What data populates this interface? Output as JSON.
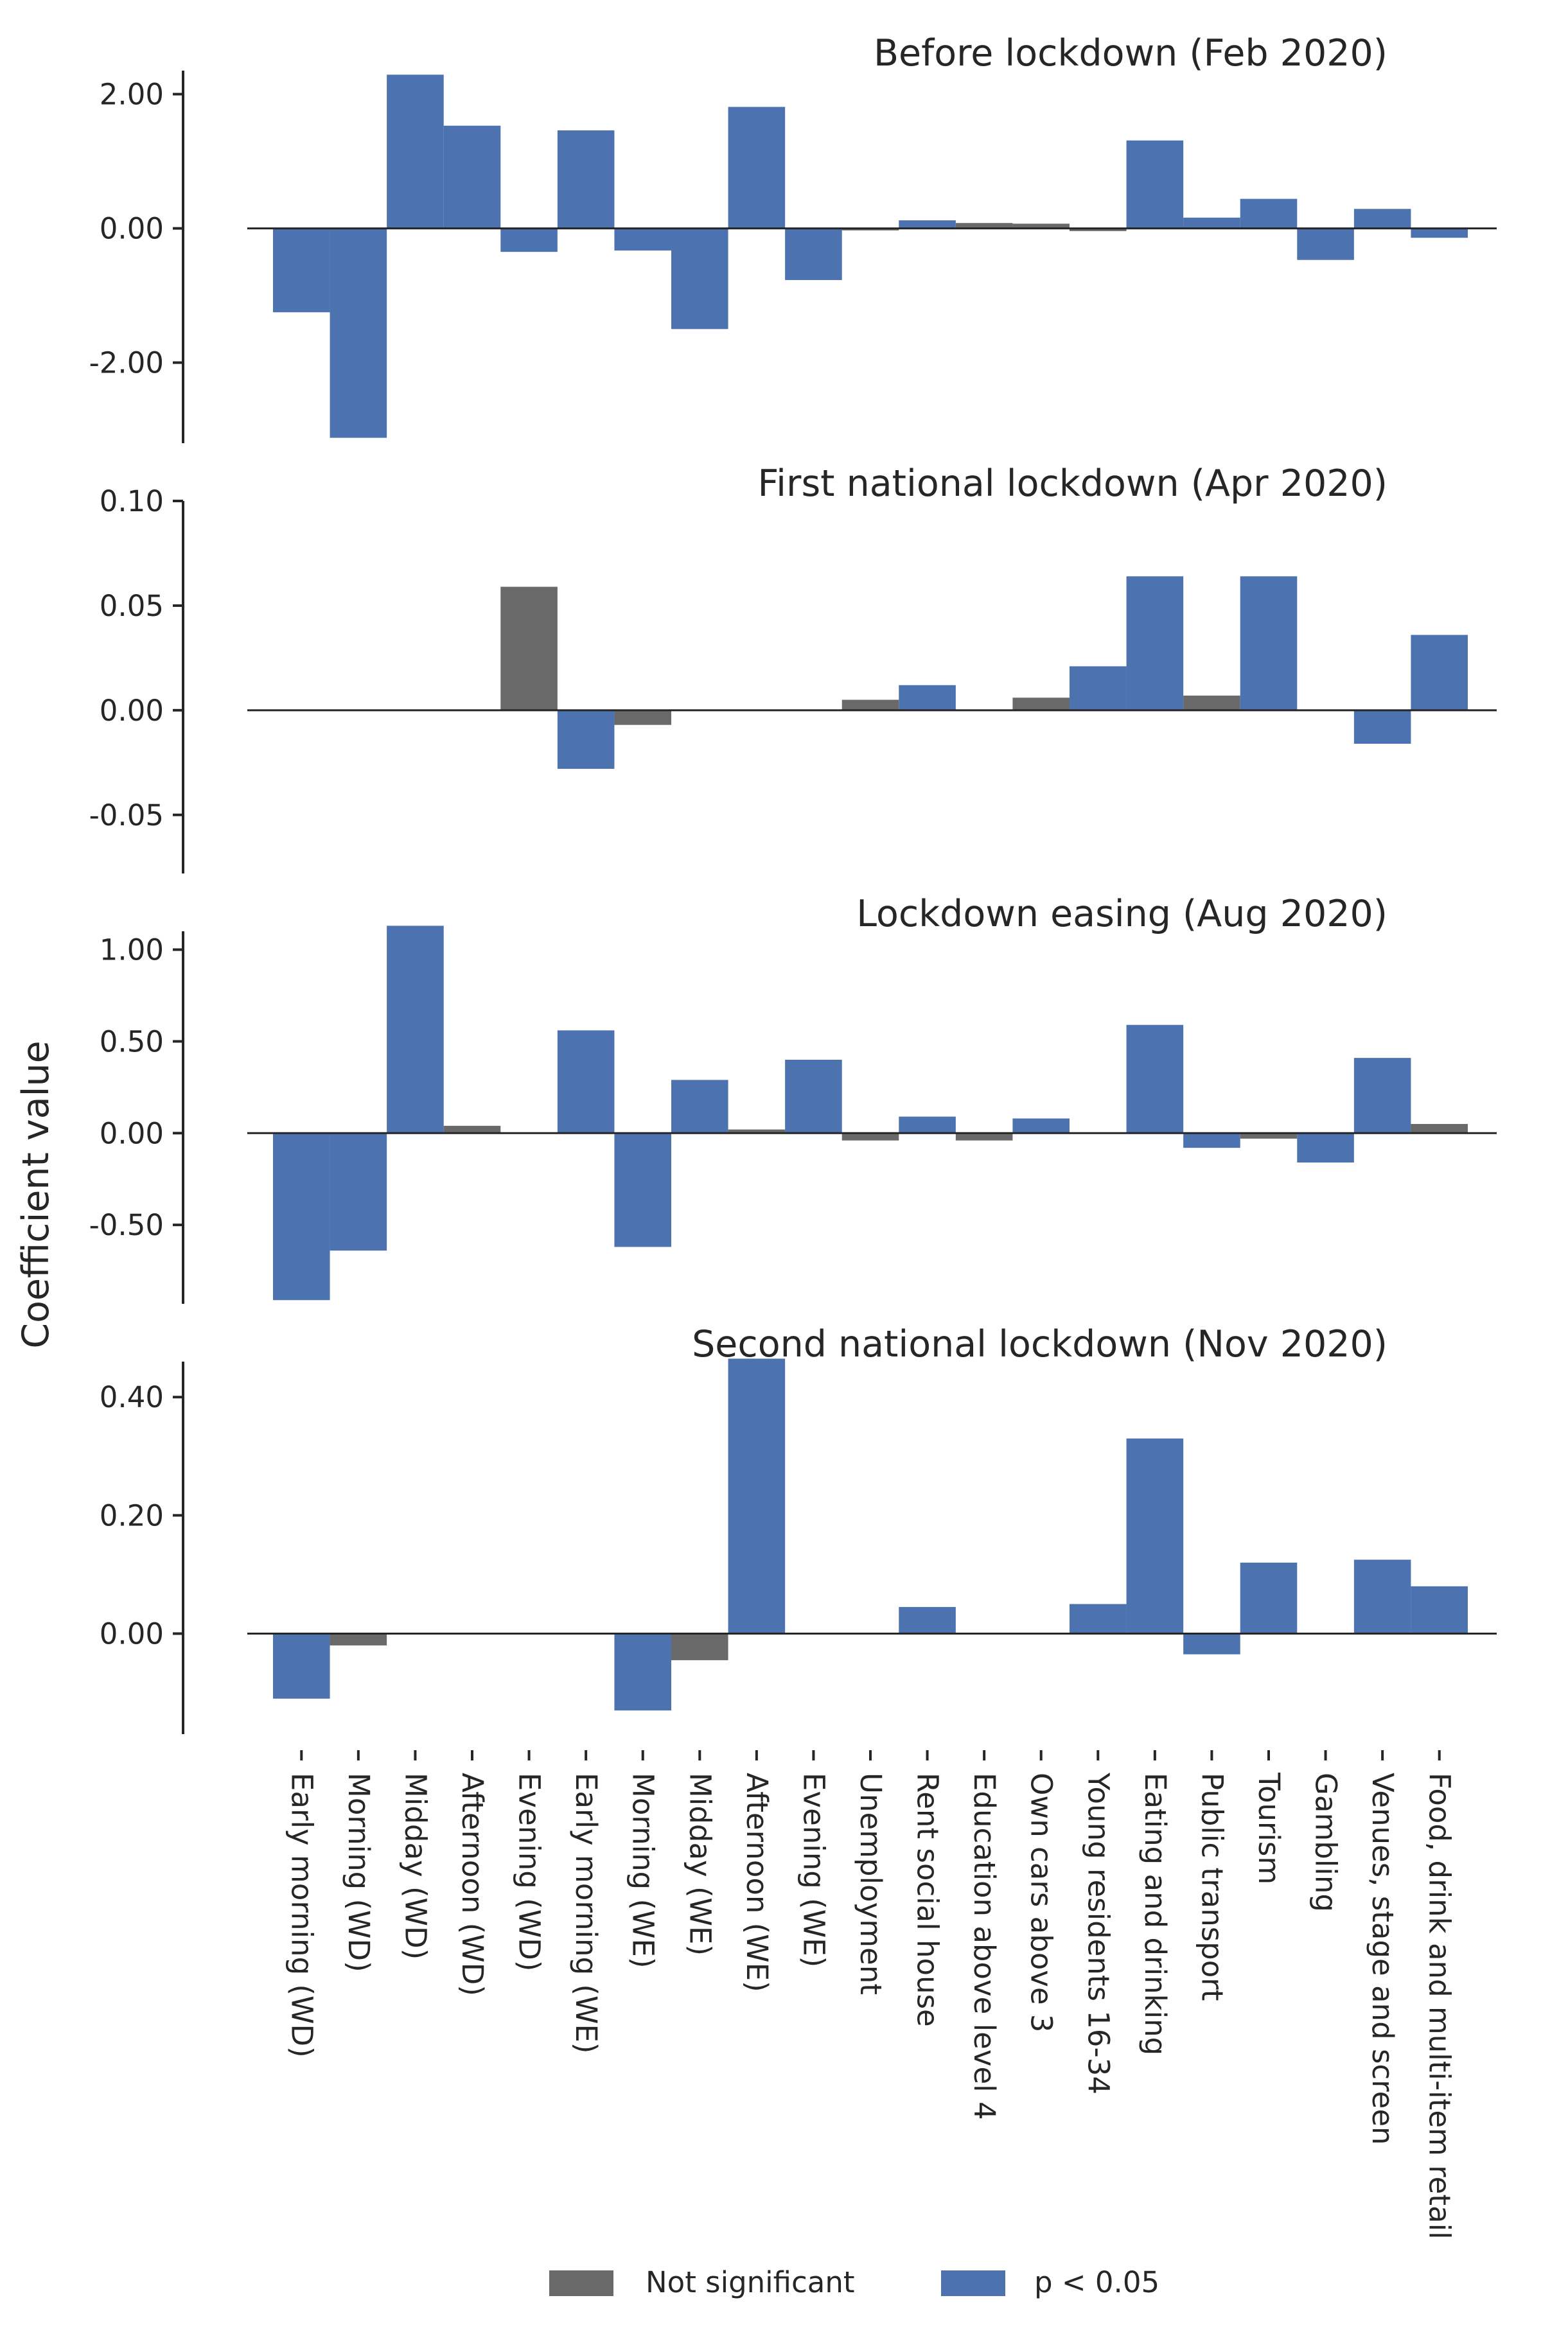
{
  "ylabel": "Coefficient value",
  "categories": [
    "Early morning (WD)",
    "Morning (WD)",
    "Midday (WD)",
    "Afternoon (WD)",
    "Evening (WD)",
    "Early morning (WE)",
    "Morning (WE)",
    "Midday (WE)",
    "Afternoon (WE)",
    "Evening (WE)",
    "Unemployment",
    "Rent social house",
    "Education above level 4",
    "Own cars above 3",
    "Young residents 16-34",
    "Eating and drinking",
    "Public transport",
    "Tourism",
    "Gambling",
    "Venues, stage and screen",
    "Food, drink and multi-item retail"
  ],
  "legend": {
    "position": "bottom-center",
    "items": [
      {
        "label": "Not significant",
        "color": "#696969"
      },
      {
        "label": "p < 0.05",
        "color": "#4c72b0"
      }
    ]
  },
  "colors": {
    "not_significant": "#696969",
    "significant": "#4c72b0"
  },
  "chart_data": [
    {
      "type": "bar",
      "title": "Before lockdown (Feb 2020)",
      "ylim": [
        -3.2,
        2.35
      ],
      "yticks": [
        -2.0,
        0.0,
        2.0
      ],
      "tick_format": 2,
      "values": [
        -1.25,
        -3.12,
        2.29,
        1.53,
        -0.35,
        1.46,
        -0.33,
        -1.5,
        1.81,
        -0.77,
        -0.03,
        0.12,
        0.08,
        0.07,
        -0.04,
        1.31,
        0.16,
        0.44,
        -0.47,
        0.29,
        -0.14
      ],
      "significant": [
        true,
        true,
        true,
        true,
        true,
        true,
        true,
        true,
        true,
        true,
        false,
        true,
        false,
        false,
        false,
        true,
        true,
        true,
        true,
        true,
        true
      ]
    },
    {
      "type": "bar",
      "title": "First national lockdown (Apr 2020)",
      "ylim": [
        -0.078,
        0.1
      ],
      "yticks": [
        -0.05,
        0.0,
        0.05,
        0.1
      ],
      "tick_format": 2,
      "values": [
        0,
        0,
        0,
        0,
        0.059,
        -0.028,
        -0.007,
        0,
        0,
        0,
        0.005,
        0.012,
        0,
        0.006,
        0.021,
        0.064,
        0.007,
        0.064,
        0,
        -0.016,
        0.036
      ],
      "significant": [
        false,
        false,
        false,
        false,
        false,
        true,
        false,
        false,
        false,
        false,
        false,
        true,
        false,
        false,
        true,
        true,
        false,
        true,
        false,
        true,
        true
      ]
    },
    {
      "type": "bar",
      "title": "Lockdown easing (Aug 2020)",
      "ylim": [
        -0.93,
        1.1
      ],
      "yticks": [
        -0.5,
        0.0,
        0.5,
        1.0
      ],
      "tick_format": 2,
      "values": [
        -0.91,
        -0.64,
        1.13,
        0.04,
        0,
        0.56,
        -0.62,
        0.29,
        0.02,
        0.4,
        -0.04,
        0.09,
        -0.04,
        0.08,
        0,
        0.59,
        -0.08,
        -0.03,
        -0.16,
        0.41,
        0.05
      ],
      "significant": [
        true,
        true,
        true,
        false,
        false,
        true,
        true,
        true,
        false,
        true,
        false,
        true,
        false,
        true,
        false,
        true,
        true,
        false,
        true,
        true,
        false
      ]
    },
    {
      "type": "bar",
      "title": "Second national lockdown (Nov 2020)",
      "ylim": [
        -0.17,
        0.46
      ],
      "yticks": [
        0.0,
        0.2,
        0.4
      ],
      "tick_format": 2,
      "values": [
        -0.11,
        -0.02,
        0,
        0,
        0,
        0,
        -0.13,
        -0.045,
        0.465,
        0,
        0,
        0.045,
        0,
        0,
        0.05,
        0.33,
        -0.035,
        0.12,
        0,
        0.125,
        0.08
      ],
      "significant": [
        true,
        false,
        false,
        false,
        false,
        false,
        true,
        false,
        true,
        false,
        false,
        true,
        false,
        false,
        true,
        true,
        true,
        true,
        false,
        true,
        true
      ]
    }
  ]
}
